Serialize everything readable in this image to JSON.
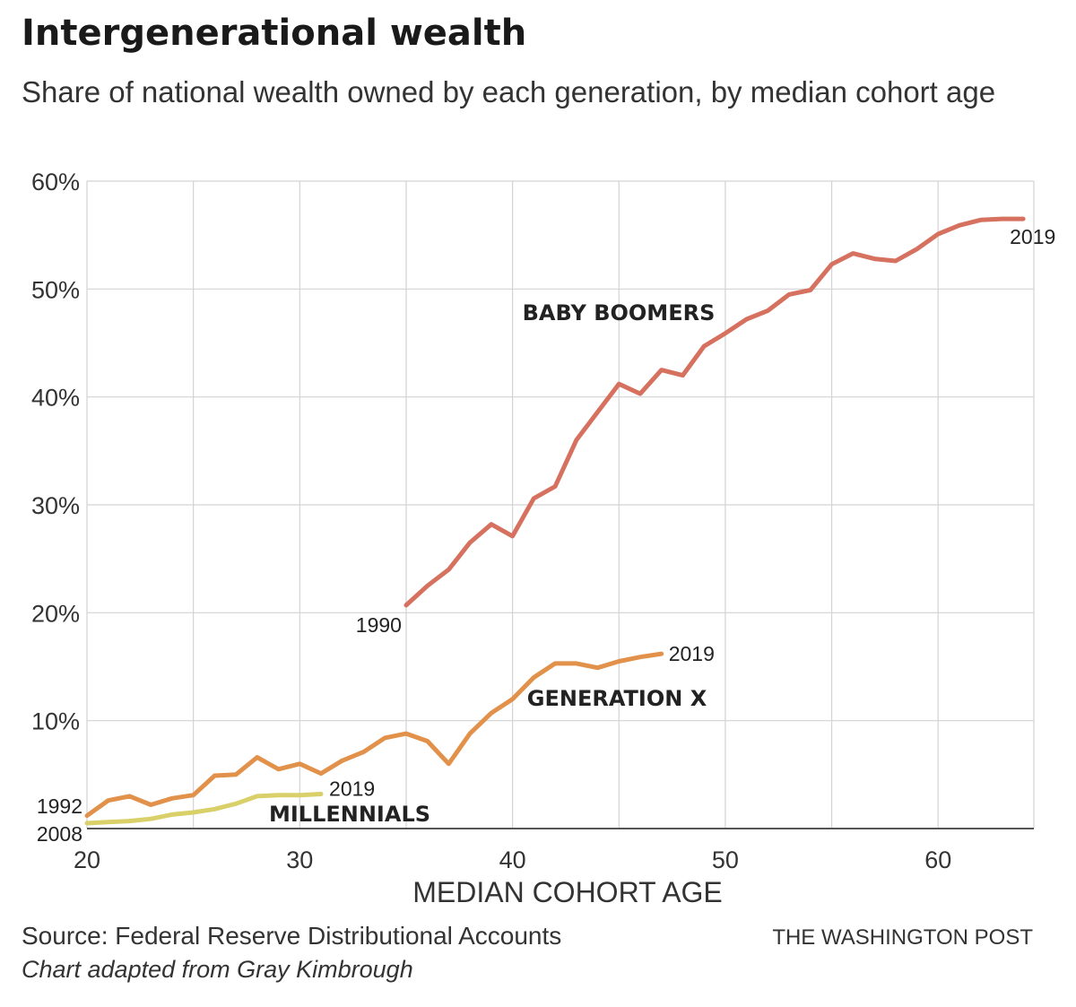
{
  "header": {
    "title": "Intergenerational wealth",
    "subtitle": "Share of national wealth owned by each generation, by median cohort age"
  },
  "footer": {
    "source": "Source: Federal Reserve Distributional Accounts",
    "credit": "Chart adapted from Gray Kimbrough",
    "publisher": "THE WASHINGTON POST"
  },
  "chart_data": {
    "type": "line",
    "xlabel": "MEDIAN COHORT AGE",
    "ylabel": "",
    "xlim": [
      20,
      64.5
    ],
    "ylim": [
      0,
      60
    ],
    "x_ticks": [
      20,
      30,
      40,
      50,
      60
    ],
    "y_ticks": [
      10,
      20,
      30,
      40,
      50,
      60
    ],
    "y_tick_labels": [
      "10%",
      "20%",
      "30%",
      "40%",
      "50%",
      "60%"
    ],
    "grid": true,
    "series": [
      {
        "name": "BABY BOOMERS",
        "color": "#d6705f",
        "start_label": "1990",
        "end_label": "2019",
        "x": [
          35,
          36,
          37,
          38,
          39,
          40,
          41,
          42,
          43,
          44,
          45,
          46,
          47,
          48,
          49,
          50,
          51,
          52,
          53,
          54,
          55,
          56,
          57,
          58,
          59,
          60,
          61,
          62,
          63,
          64
        ],
        "values": [
          20.7,
          22.5,
          24.0,
          26.5,
          28.2,
          27.1,
          30.6,
          31.7,
          36.0,
          38.6,
          41.2,
          40.3,
          42.5,
          42.0,
          44.7,
          45.9,
          47.2,
          48.0,
          49.5,
          49.9,
          52.3,
          53.3,
          52.8,
          52.6,
          53.7,
          55.1,
          55.9,
          56.4,
          56.5,
          56.5
        ]
      },
      {
        "name": "GENERATION X",
        "color": "#e2914a",
        "start_label": "1992",
        "end_label": "2019",
        "x": [
          20,
          21,
          22,
          23,
          24,
          25,
          26,
          27,
          28,
          29,
          30,
          31,
          32,
          33,
          34,
          35,
          36,
          37,
          38,
          39,
          40,
          41,
          42,
          43,
          44,
          45,
          46,
          47
        ],
        "values": [
          1.2,
          2.6,
          3.0,
          2.2,
          2.8,
          3.1,
          4.9,
          5.0,
          6.6,
          5.5,
          6.0,
          5.1,
          6.3,
          7.1,
          8.4,
          8.8,
          8.1,
          6.0,
          8.8,
          10.7,
          12.0,
          14.0,
          15.3,
          15.3,
          14.9,
          15.5,
          15.9,
          16.2
        ]
      },
      {
        "name": "MILLENNIALS",
        "color": "#d9d06a",
        "start_label": "2008",
        "end_label": "2019",
        "x": [
          20,
          21,
          22,
          23,
          24,
          25,
          26,
          27,
          28,
          29,
          30,
          31
        ],
        "values": [
          0.5,
          0.6,
          0.7,
          0.9,
          1.3,
          1.5,
          1.8,
          2.3,
          3.0,
          3.1,
          3.1,
          3.2
        ]
      }
    ]
  }
}
